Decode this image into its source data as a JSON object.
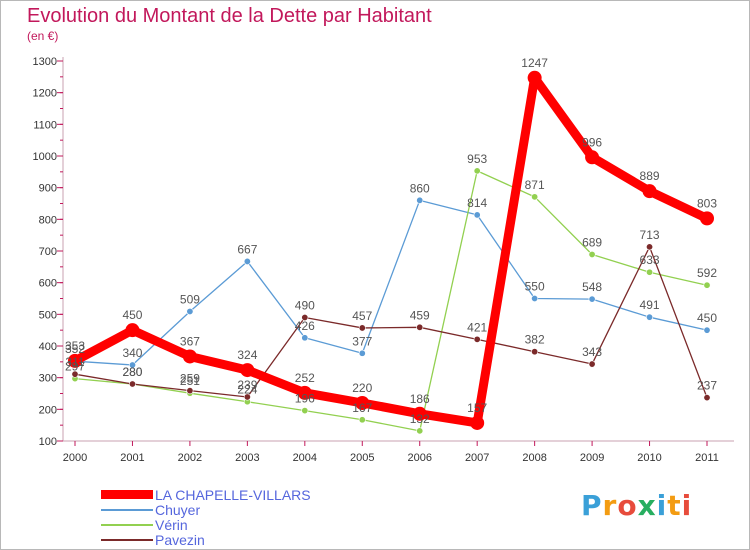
{
  "title": "Evolution du Montant de la Dette par Habitant",
  "subtitle": "(en €)",
  "brand": {
    "letters": [
      "P",
      "r",
      "o",
      "x",
      "i",
      "t",
      "i"
    ],
    "colors": [
      "#3aa0d8",
      "#f39c12",
      "#e74c3c",
      "#27ae60"
    ]
  },
  "chart_data": {
    "type": "line",
    "title": "Evolution du Montant de la Dette par Habitant",
    "subtitle": "(en €)",
    "x": [
      "2000",
      "2001",
      "2002",
      "2003",
      "2004",
      "2005",
      "2006",
      "2007",
      "2008",
      "2009",
      "2010",
      "2011"
    ],
    "y_ticks": [
      "100",
      "200",
      "300",
      "400",
      "500",
      "600",
      "700",
      "800",
      "900",
      "1000",
      "1100",
      "1200",
      "1300"
    ],
    "ylim": [
      100,
      1300
    ],
    "grid": false,
    "legend_position": "bottom-left",
    "series": [
      {
        "name": "Chuyer",
        "color": "#5b9bd5",
        "width": 1.3,
        "marker": 3.2,
        "values": [
          352,
          340,
          509,
          667,
          426,
          377,
          860,
          814,
          550,
          548,
          491,
          450
        ],
        "labels": [
          "352",
          "340",
          "509",
          "667",
          "426",
          "377",
          "860",
          "814",
          "550",
          "548",
          "491",
          "450"
        ]
      },
      {
        "name": "Vérin",
        "color": "#92d050",
        "width": 1.3,
        "marker": 3.2,
        "values": [
          297,
          280,
          251,
          224,
          196,
          167,
          132,
          953,
          871,
          689,
          633,
          592
        ],
        "labels": [
          "297",
          "280",
          "251",
          "224",
          "196",
          "167",
          "132",
          "953",
          "871",
          "689",
          "633",
          "592"
        ]
      },
      {
        "name": "Pavezin",
        "color": "#7b2a2a",
        "width": 1.3,
        "marker": 3.2,
        "values": [
          311,
          280,
          259,
          239,
          490,
          457,
          459,
          421,
          382,
          343,
          713,
          237
        ],
        "labels": [
          "311",
          "280",
          "259",
          "239",
          "490",
          "457",
          "459",
          "421",
          "382",
          "343",
          "713",
          "237"
        ]
      },
      {
        "name": "LA CHAPELLE-VILLARS",
        "color": "#ff0000",
        "width": 9,
        "marker": 7,
        "values": [
          353,
          450,
          367,
          324,
          252,
          220,
          186,
          157,
          1247,
          996,
          889,
          803
        ],
        "labels": [
          "353",
          "450",
          "367",
          "324",
          "252",
          "220",
          "186",
          "157",
          "1247",
          "996",
          "889",
          "803"
        ]
      }
    ],
    "legend": [
      "LA CHAPELLE-VILLARS",
      "Chuyer",
      "Vérin",
      "Pavezin"
    ]
  }
}
